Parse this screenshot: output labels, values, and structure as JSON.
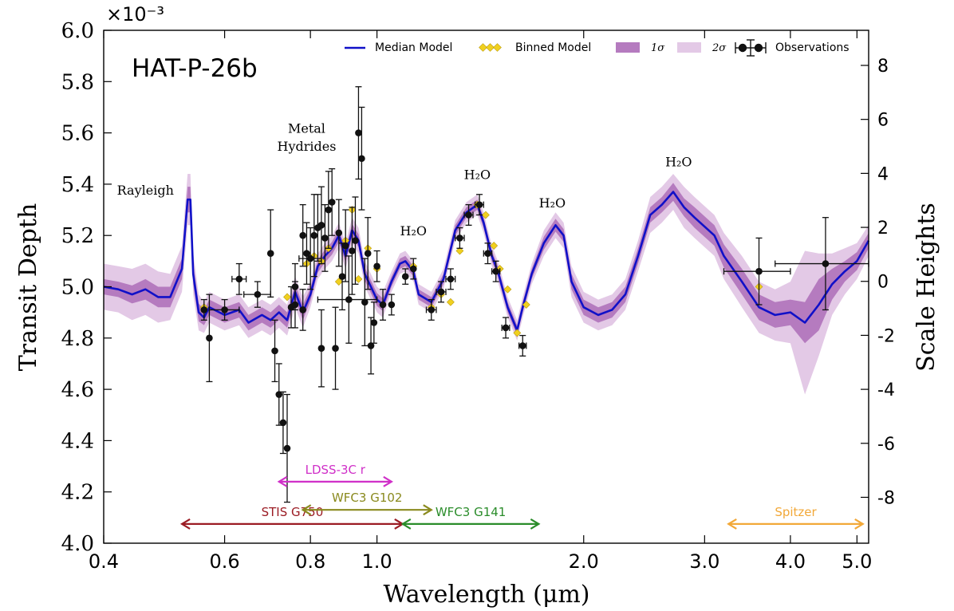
{
  "chart_data": {
    "type": "line",
    "title": "HAT-P-26b",
    "xlabel": "Wavelength (μm)",
    "ylabel": "Transit Depth",
    "y2label": "Scale Heights",
    "y_multiplier": "×10⁻³",
    "xscale": "log",
    "xlim": [
      0.4,
      5.2
    ],
    "ylim": [
      4.0,
      6.0
    ],
    "y2lim": [
      -9.7,
      9.3
    ],
    "xticks": [
      0.4,
      0.6,
      0.8,
      1.0,
      2.0,
      3.0,
      4.0,
      5.0
    ],
    "xtick_labels": [
      "0.4",
      "0.6",
      "0.8",
      "1.0",
      "2.0",
      "3.0",
      "4.0",
      "5.0"
    ],
    "yticks": [
      4.0,
      4.2,
      4.4,
      4.6,
      4.8,
      5.0,
      5.2,
      5.4,
      5.6,
      5.8,
      6.0
    ],
    "ytick_labels": [
      "4.0",
      "4.2",
      "4.4",
      "4.6",
      "4.8",
      "5.0",
      "5.2",
      "5.4",
      "5.6",
      "5.8",
      "6.0"
    ],
    "y2ticks": [
      8,
      6,
      4,
      2,
      0,
      -2,
      -4,
      -6,
      -8
    ],
    "y2tick_labels": [
      "8",
      "6",
      "4",
      "2",
      "0",
      "-2",
      "-4",
      "-6",
      "-8"
    ],
    "legend": {
      "position": "top-right",
      "entries": [
        {
          "label": "Median Model",
          "color": "#1010c8"
        },
        {
          "label": "Binned Model",
          "color": "#f0d020"
        },
        {
          "label": "1σ",
          "color": "#b57bbf"
        },
        {
          "label": "2σ",
          "color": "#e3c9e6"
        },
        {
          "label": "Observations",
          "color": "#111111"
        }
      ]
    },
    "annotations": [
      {
        "text": "Rayleigh",
        "x": 0.46,
        "y": 5.36
      },
      {
        "text": "Metal",
        "x": 0.79,
        "y": 5.6
      },
      {
        "text": "Hydrides",
        "x": 0.79,
        "y": 5.53
      },
      {
        "text": "H₂O",
        "x": 1.13,
        "y": 5.2
      },
      {
        "text": "H₂O",
        "x": 1.4,
        "y": 5.42
      },
      {
        "text": "H₂O",
        "x": 1.8,
        "y": 5.31
      },
      {
        "text": "H₂O",
        "x": 2.75,
        "y": 5.47
      }
    ],
    "instruments": [
      {
        "name": "LDSS-3C r",
        "x0": 0.72,
        "x1": 1.05,
        "y": 4.24,
        "color": "#d030c8"
      },
      {
        "name": "STIS G750",
        "x0": 0.52,
        "x1": 1.09,
        "y": 4.075,
        "color": "#9b1c24"
      },
      {
        "name": "WFC3 G102",
        "x0": 0.78,
        "x1": 1.2,
        "y": 4.13,
        "color": "#8a8a1e"
      },
      {
        "name": "WFC3 G141",
        "x0": 1.09,
        "x1": 1.72,
        "y": 4.075,
        "color": "#2a8c2a"
      },
      {
        "name": "Spitzer",
        "x0": 3.25,
        "x1": 5.1,
        "y": 4.075,
        "color": "#f2a838"
      }
    ],
    "series": [
      {
        "name": "Median Model",
        "x": [
          0.4,
          0.42,
          0.44,
          0.46,
          0.48,
          0.5,
          0.52,
          0.53,
          0.535,
          0.54,
          0.55,
          0.56,
          0.57,
          0.6,
          0.63,
          0.65,
          0.68,
          0.7,
          0.72,
          0.74,
          0.76,
          0.78,
          0.8,
          0.82,
          0.84,
          0.86,
          0.88,
          0.9,
          0.92,
          0.94,
          0.96,
          0.98,
          1.0,
          1.02,
          1.05,
          1.08,
          1.1,
          1.13,
          1.15,
          1.2,
          1.25,
          1.3,
          1.35,
          1.4,
          1.43,
          1.47,
          1.5,
          1.55,
          1.6,
          1.63,
          1.68,
          1.75,
          1.82,
          1.87,
          1.92,
          2.0,
          2.1,
          2.2,
          2.3,
          2.4,
          2.5,
          2.6,
          2.7,
          2.8,
          2.9,
          3.1,
          3.2,
          3.4,
          3.6,
          3.8,
          4.0,
          4.2,
          4.4,
          4.6,
          4.8,
          5.0,
          5.2
        ],
        "y": [
          5.0,
          4.99,
          4.97,
          4.99,
          4.96,
          4.96,
          5.07,
          5.34,
          5.34,
          5.05,
          4.9,
          4.88,
          4.92,
          4.89,
          4.91,
          4.86,
          4.89,
          4.87,
          4.9,
          4.87,
          4.98,
          4.9,
          4.97,
          5.08,
          5.12,
          5.15,
          5.2,
          5.12,
          5.22,
          5.18,
          5.05,
          5.0,
          4.95,
          4.93,
          5.02,
          5.09,
          5.1,
          5.06,
          4.97,
          4.94,
          5.03,
          5.22,
          5.29,
          5.32,
          5.25,
          5.12,
          5.06,
          4.92,
          4.83,
          4.92,
          5.05,
          5.17,
          5.24,
          5.2,
          5.02,
          4.92,
          4.89,
          4.91,
          4.97,
          5.12,
          5.28,
          5.32,
          5.37,
          5.31,
          5.27,
          5.2,
          5.12,
          5.02,
          4.92,
          4.89,
          4.9,
          4.86,
          4.93,
          5.01,
          5.06,
          5.1,
          5.18
        ],
        "sigma1_halfwidth": [
          0.03,
          0.03,
          0.035,
          0.04,
          0.04,
          0.04,
          0.04,
          0.05,
          0.05,
          0.04,
          0.035,
          0.03,
          0.03,
          0.03,
          0.03,
          0.03,
          0.03,
          0.03,
          0.03,
          0.03,
          0.03,
          0.03,
          0.025,
          0.025,
          0.025,
          0.025,
          0.025,
          0.025,
          0.025,
          0.025,
          0.025,
          0.025,
          0.025,
          0.025,
          0.02,
          0.02,
          0.02,
          0.02,
          0.02,
          0.02,
          0.02,
          0.02,
          0.02,
          0.02,
          0.02,
          0.02,
          0.02,
          0.02,
          0.02,
          0.02,
          0.02,
          0.025,
          0.025,
          0.025,
          0.03,
          0.03,
          0.03,
          0.03,
          0.03,
          0.03,
          0.03,
          0.03,
          0.035,
          0.035,
          0.04,
          0.04,
          0.045,
          0.05,
          0.05,
          0.05,
          0.05,
          0.08,
          0.1,
          0.06,
          0.04,
          0.035,
          0.03
        ],
        "sigma2_halfwidth": [
          0.09,
          0.09,
          0.1,
          0.1,
          0.1,
          0.09,
          0.09,
          0.1,
          0.1,
          0.08,
          0.07,
          0.06,
          0.06,
          0.06,
          0.06,
          0.06,
          0.06,
          0.06,
          0.06,
          0.06,
          0.06,
          0.06,
          0.05,
          0.05,
          0.05,
          0.05,
          0.05,
          0.05,
          0.05,
          0.05,
          0.05,
          0.05,
          0.05,
          0.05,
          0.04,
          0.04,
          0.04,
          0.04,
          0.04,
          0.04,
          0.04,
          0.04,
          0.04,
          0.04,
          0.04,
          0.04,
          0.04,
          0.04,
          0.04,
          0.04,
          0.04,
          0.05,
          0.05,
          0.05,
          0.06,
          0.06,
          0.06,
          0.06,
          0.06,
          0.06,
          0.07,
          0.07,
          0.07,
          0.08,
          0.08,
          0.08,
          0.09,
          0.1,
          0.1,
          0.1,
          0.12,
          0.28,
          0.2,
          0.12,
          0.09,
          0.07,
          0.06
        ]
      },
      {
        "name": "Binned Model",
        "x": [
          0.56,
          0.6,
          0.74,
          0.76,
          0.79,
          0.81,
          0.83,
          0.85,
          0.88,
          0.9,
          0.92,
          0.94,
          0.97,
          1.0,
          1.13,
          1.2,
          1.24,
          1.28,
          1.32,
          1.36,
          1.4,
          1.44,
          1.48,
          1.51,
          1.55,
          1.6,
          1.65,
          3.6,
          4.5
        ],
        "y": [
          4.92,
          4.91,
          4.96,
          4.93,
          5.09,
          5.12,
          5.1,
          5.15,
          5.02,
          5.18,
          5.3,
          5.03,
          5.15,
          5.07,
          5.08,
          4.92,
          4.97,
          4.94,
          5.14,
          5.28,
          5.32,
          5.28,
          5.16,
          5.07,
          4.99,
          4.82,
          4.93,
          5.0,
          5.09
        ]
      },
      {
        "name": "Observations",
        "x": [
          0.56,
          0.57,
          0.6,
          0.63,
          0.67,
          0.7,
          0.71,
          0.72,
          0.73,
          0.74,
          0.75,
          0.76,
          0.76,
          0.78,
          0.78,
          0.79,
          0.8,
          0.81,
          0.82,
          0.83,
          0.83,
          0.84,
          0.85,
          0.86,
          0.87,
          0.88,
          0.89,
          0.9,
          0.91,
          0.92,
          0.93,
          0.94,
          0.95,
          0.96,
          0.97,
          0.98,
          0.99,
          1.0,
          1.02,
          1.05,
          1.1,
          1.13,
          1.2,
          1.24,
          1.28,
          1.32,
          1.36,
          1.41,
          1.45,
          1.49,
          1.54,
          1.63,
          3.6,
          4.5
        ],
        "y": [
          4.91,
          4.8,
          4.91,
          5.03,
          4.97,
          5.13,
          4.75,
          4.58,
          4.47,
          4.37,
          4.92,
          4.93,
          5.0,
          4.91,
          5.2,
          5.13,
          5.11,
          5.2,
          5.23,
          5.24,
          4.76,
          5.19,
          5.3,
          5.33,
          4.76,
          5.21,
          5.04,
          5.16,
          4.95,
          5.14,
          5.18,
          5.6,
          5.5,
          4.94,
          5.13,
          4.77,
          4.86,
          5.08,
          4.93,
          4.93,
          5.04,
          5.07,
          4.91,
          4.98,
          5.03,
          5.19,
          5.28,
          5.32,
          5.13,
          5.06,
          4.84,
          4.77,
          5.06,
          5.09
        ],
        "yerr": [
          0.04,
          0.17,
          0.04,
          0.06,
          0.05,
          0.17,
          0.12,
          0.12,
          0.12,
          0.21,
          0.08,
          0.09,
          0.09,
          0.08,
          0.12,
          0.12,
          0.12,
          0.16,
          0.13,
          0.15,
          0.15,
          0.13,
          0.15,
          0.13,
          0.16,
          0.13,
          0.13,
          0.14,
          0.17,
          0.17,
          0.17,
          0.18,
          0.2,
          0.17,
          0.14,
          0.11,
          0.08,
          0.06,
          0.06,
          0.04,
          0.03,
          0.04,
          0.04,
          0.04,
          0.04,
          0.04,
          0.04,
          0.04,
          0.04,
          0.04,
          0.04,
          0.04,
          0.13,
          0.18
        ],
        "xerr": [
          0.0,
          0.0,
          0.03,
          0.015,
          0.03,
          0.0,
          0.0,
          0.0,
          0.0,
          0.0,
          0.0,
          0.0,
          0.0,
          0.0,
          0.0,
          0.0,
          0.03,
          0.0,
          0.0,
          0.0,
          0.0,
          0.0,
          0.0,
          0.0,
          0.0,
          0.0,
          0.0,
          0.0,
          0.09,
          0.0,
          0.0,
          0.0,
          0.0,
          0.0,
          0.0,
          0.0,
          0.0,
          0.0,
          0.0,
          0.0,
          0.0,
          0.0,
          0.02,
          0.02,
          0.02,
          0.02,
          0.02,
          0.02,
          0.02,
          0.02,
          0.02,
          0.02,
          0.4,
          0.7
        ]
      }
    ]
  }
}
